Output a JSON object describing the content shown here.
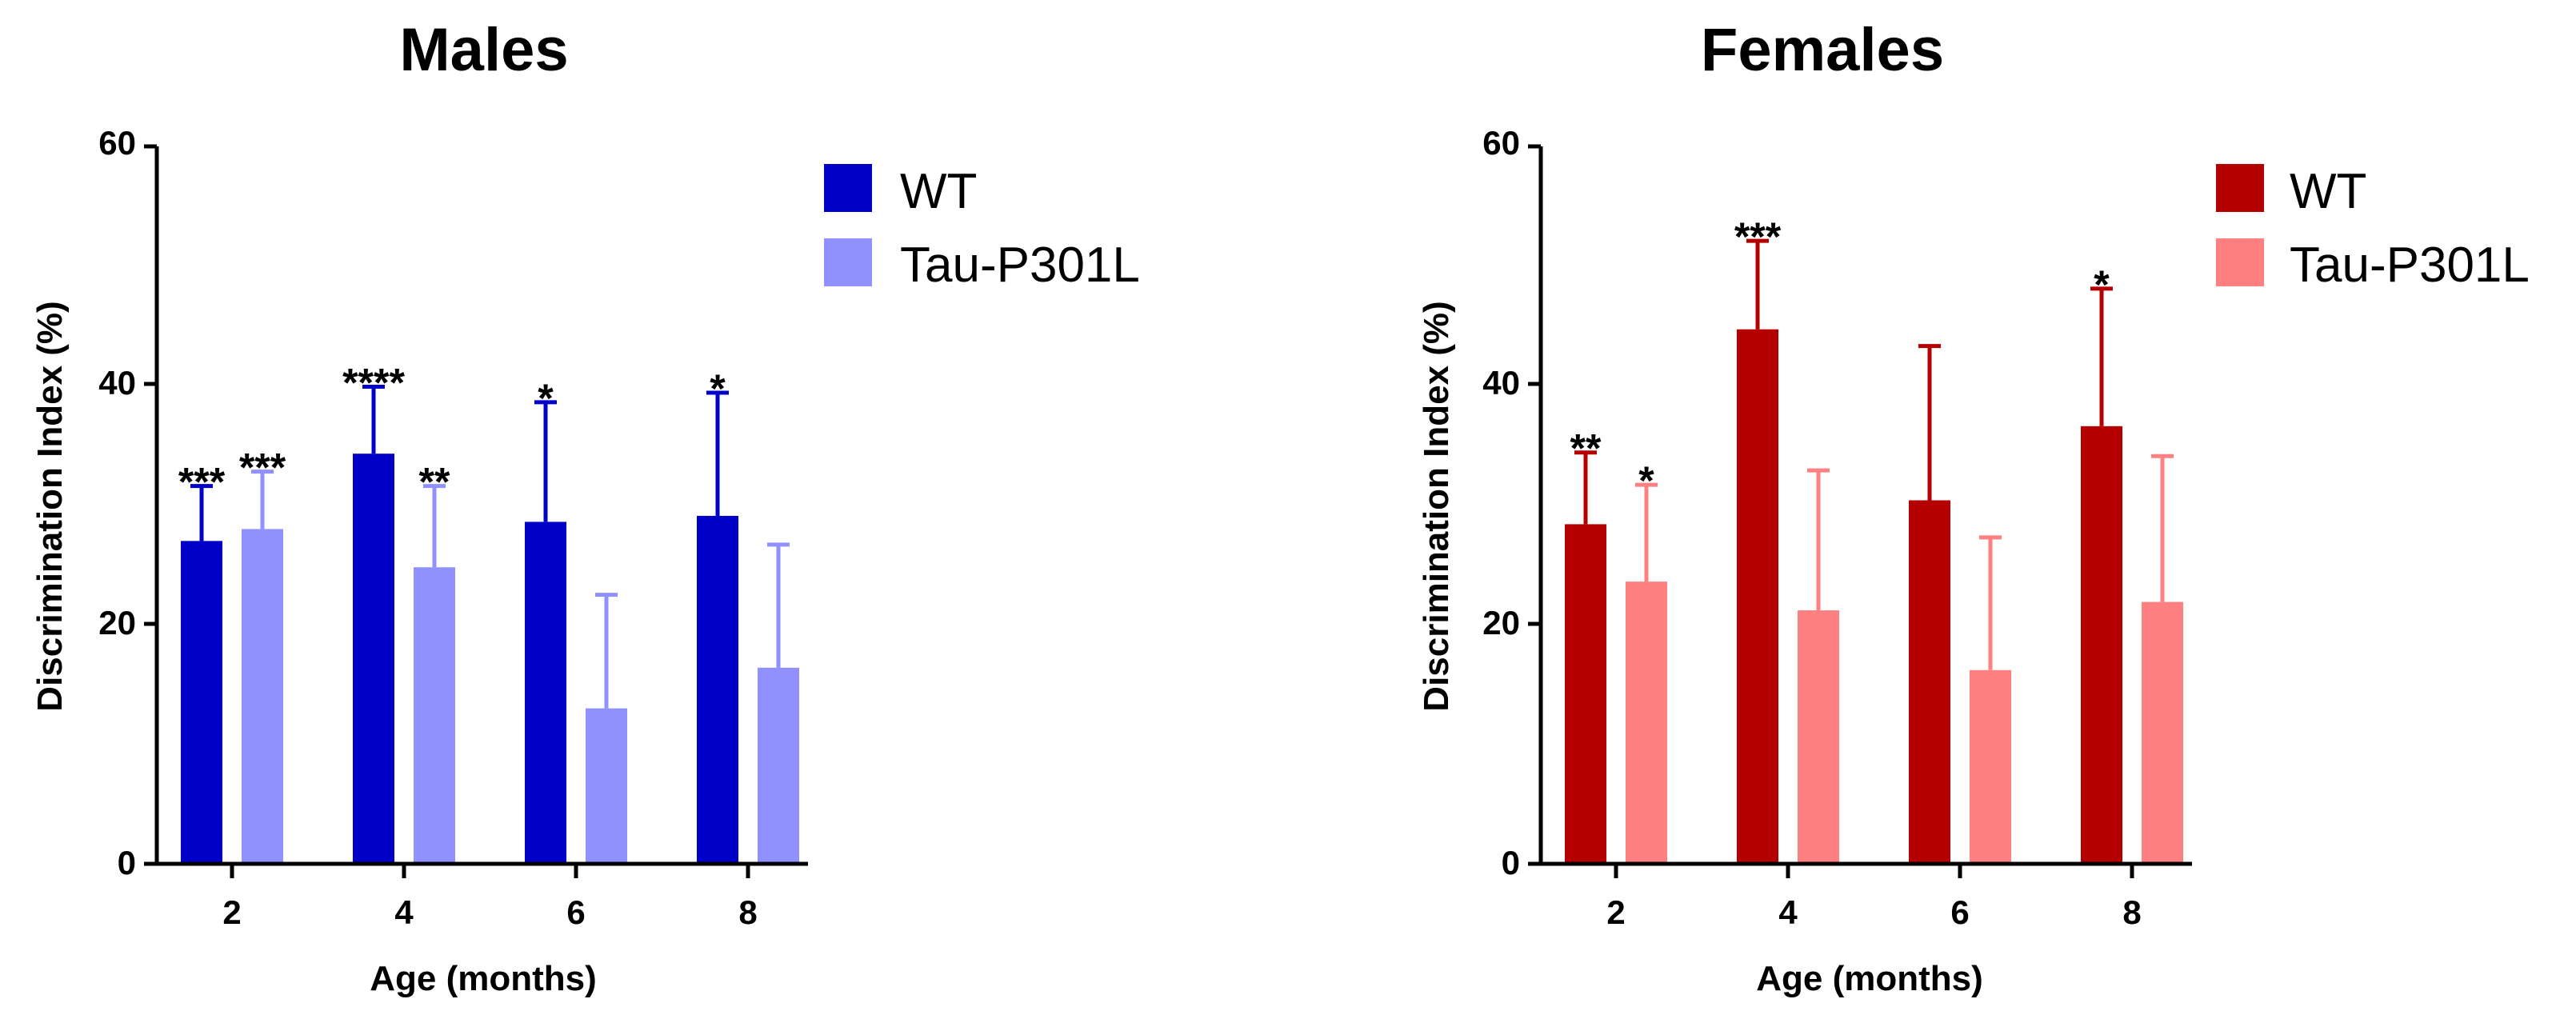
{
  "chart_data": [
    {
      "type": "bar",
      "title": "Males",
      "xlabel": "Age (months)",
      "ylabel": "Discrimination Index (%)",
      "ylim": [
        0,
        60
      ],
      "yticks": [
        "0",
        "20",
        "40",
        "60"
      ],
      "categories": [
        "2",
        "4",
        "6",
        "8"
      ],
      "legend_position": "top-right",
      "series": [
        {
          "name": "WT",
          "color": "#0000c8",
          "values": [
            27,
            34.3,
            28.6,
            29.1
          ],
          "error": [
            4.6,
            5.6,
            10,
            10.3
          ],
          "significance": [
            "***",
            "****",
            "*",
            "*"
          ]
        },
        {
          "name": "Tau-P301L",
          "color": "#9090ff",
          "values": [
            28,
            24.8,
            13,
            16.4
          ],
          "error": [
            4.8,
            6.8,
            9.5,
            10.3
          ],
          "significance": [
            "***",
            "**",
            "",
            ""
          ]
        }
      ]
    },
    {
      "type": "bar",
      "title": "Females",
      "xlabel": "Age (months)",
      "ylabel": "Discrimination Index (%)",
      "ylim": [
        0,
        60
      ],
      "yticks": [
        "0",
        "20",
        "40",
        "60"
      ],
      "categories": [
        "2",
        "4",
        "6",
        "8"
      ],
      "legend_position": "top-right",
      "series": [
        {
          "name": "WT",
          "color": "#b40000",
          "values": [
            28.4,
            44.7,
            30.4,
            36.6
          ],
          "error": [
            6,
            7.4,
            12.9,
            11.5
          ],
          "significance": [
            "**",
            "***",
            "",
            "*"
          ]
        },
        {
          "name": "Tau-P301L",
          "color": "#ff8080",
          "values": [
            23.6,
            21.2,
            16.2,
            21.9
          ],
          "error": [
            8.1,
            11.7,
            11.1,
            12.2
          ],
          "significance": [
            "*",
            "",
            "",
            ""
          ]
        }
      ]
    }
  ]
}
